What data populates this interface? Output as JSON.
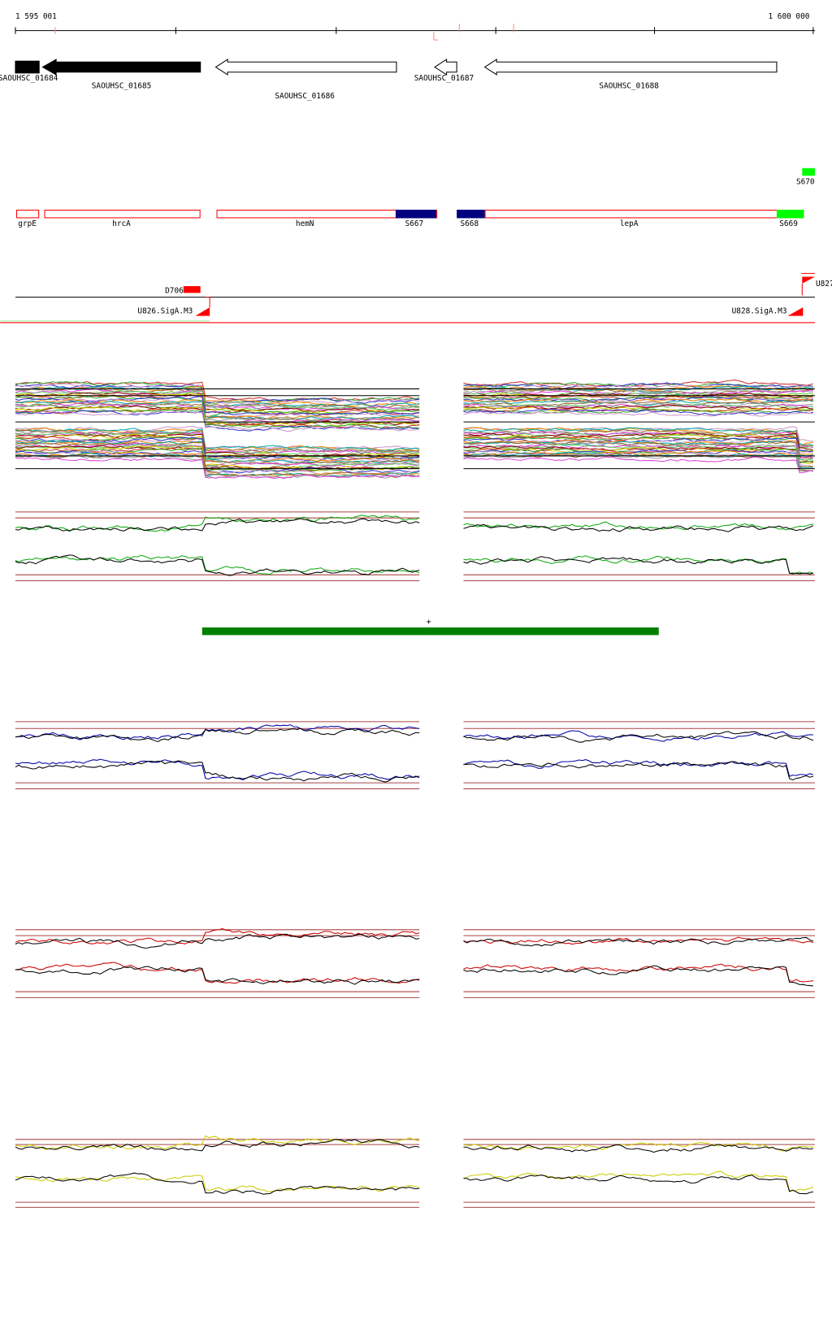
{
  "ruler": {
    "start": "1 595 001",
    "end": "1 600 000"
  },
  "genes": [
    "SAOUHSC_01684",
    "SAOUHSC_01685",
    "SAOUHSC_01686",
    "SAOUHSC_01687",
    "SAOUHSC_01688"
  ],
  "features": [
    "grpE",
    "hrcA",
    "hemN",
    "S667",
    "S668",
    "lepA",
    "S669",
    "S670"
  ],
  "segments": [
    "D706",
    "U826.SigA.M3",
    "U828.SigA.M3",
    "U827"
  ],
  "strand": "+"
}
